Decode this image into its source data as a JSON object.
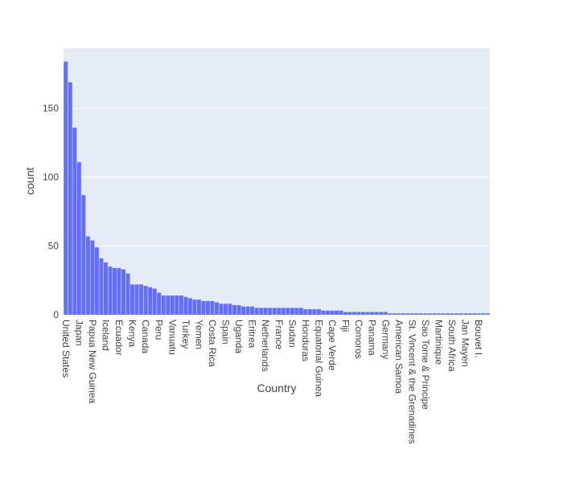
{
  "chart_data": {
    "type": "bar",
    "x_label": "Country",
    "y_label": "count",
    "color": "#636efa",
    "grid": true,
    "ylim": [
      0,
      193.7
    ],
    "yticks": [
      0,
      50,
      100,
      150
    ],
    "categories": [
      "United States",
      null,
      null,
      "Japan",
      null,
      null,
      "Papua New Guinea",
      null,
      null,
      "Iceland",
      null,
      null,
      "Ecuador",
      null,
      null,
      "Kenya",
      null,
      null,
      "Canada",
      null,
      null,
      "Peru",
      null,
      null,
      "Vanuatu",
      null,
      null,
      "Turkey",
      null,
      null,
      "Yemen",
      null,
      null,
      "Costa Rica",
      null,
      null,
      "Spain",
      null,
      null,
      "Uganda",
      null,
      null,
      "Eritrea",
      null,
      null,
      "Netherlands",
      null,
      null,
      "France",
      null,
      null,
      "Sudan",
      null,
      null,
      "Honduras",
      null,
      null,
      "Equatorial Guinea",
      null,
      null,
      "Cape Verde",
      null,
      null,
      "Fiji",
      null,
      null,
      "Comoros",
      null,
      null,
      "Panama",
      null,
      null,
      "Germany",
      null,
      null,
      "American Samoa",
      null,
      null,
      "St. Vincent & the Grenadines",
      null,
      null,
      "Sao Tome & Principe",
      null,
      null,
      "Martinique",
      null,
      null,
      "South Africa",
      null,
      null,
      "Jan Mayen",
      null,
      null,
      "Bouvet I.",
      null,
      null
    ],
    "values": [
      184,
      169,
      136,
      111,
      87,
      57,
      54,
      49,
      41,
      38,
      35,
      34,
      34,
      33,
      30,
      22,
      22,
      22,
      21,
      20,
      19,
      16,
      14,
      14,
      14,
      14,
      14,
      13,
      12,
      11,
      11,
      10,
      10,
      10,
      9,
      8,
      8,
      8,
      7,
      7,
      6,
      6,
      6,
      5,
      5,
      5,
      5,
      5,
      5,
      5,
      5,
      5,
      5,
      5,
      4,
      4,
      4,
      4,
      3,
      3,
      3,
      3,
      3,
      2,
      2,
      2,
      2,
      2,
      2,
      2,
      2,
      2,
      2,
      1,
      1,
      1,
      1,
      1,
      1,
      1,
      1,
      1,
      1,
      1,
      1,
      1,
      1,
      1,
      1,
      1,
      1,
      1,
      1,
      1,
      1,
      1
    ]
  }
}
